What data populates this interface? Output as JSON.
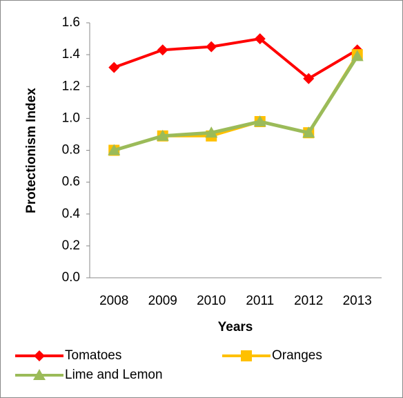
{
  "chart_data": {
    "type": "line",
    "ylabel": "Protectionism Index",
    "xlabel": "Years",
    "categories": [
      "2008",
      "2009",
      "2010",
      "2011",
      "2012",
      "2013"
    ],
    "series": [
      {
        "name": "Tomatoes",
        "color": "#ff0000",
        "marker": "diamond",
        "values": [
          1.32,
          1.43,
          1.45,
          1.5,
          1.25,
          1.43
        ]
      },
      {
        "name": "Oranges",
        "color": "#ffc000",
        "marker": "square",
        "values": [
          0.8,
          0.89,
          0.89,
          0.98,
          0.91,
          1.4
        ]
      },
      {
        "name": "Lime and Lemon",
        "color": "#9bbb59",
        "marker": "triangle",
        "values": [
          0.8,
          0.89,
          0.91,
          0.98,
          0.91,
          1.39
        ]
      }
    ],
    "ylim": [
      0,
      1.6
    ],
    "yticks": [
      {
        "value": 0,
        "label": "0.0"
      },
      0.2,
      0.4,
      0.6,
      0.8,
      {
        "value": 1,
        "label": "1.0"
      },
      1.2,
      1.4,
      1.6
    ],
    "grid": false,
    "legend": "bottom"
  }
}
